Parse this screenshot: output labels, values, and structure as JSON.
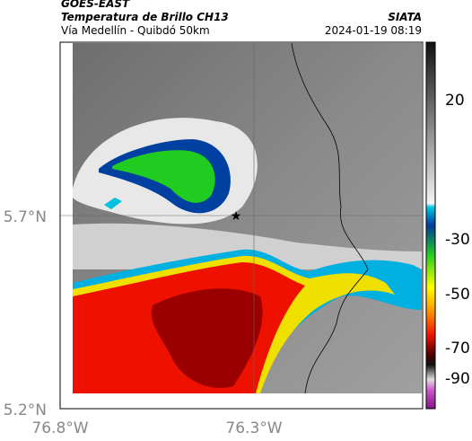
{
  "header": {
    "satellite": "GOES-EAST",
    "product": "Temperatura de Brillo CH13",
    "route": "Vía Medellín - Quibdó 50km",
    "source": "SIATA",
    "datetime": "2024-01-19 08:19"
  },
  "axes": {
    "lat_ticks": [
      "5.7°N",
      "5.2°N"
    ],
    "lon_ticks": [
      "76.8°W",
      "76.3°W"
    ]
  },
  "colorbar": {
    "ticks": [
      "20",
      "-30",
      "-50",
      "-70",
      "-90"
    ]
  }
}
